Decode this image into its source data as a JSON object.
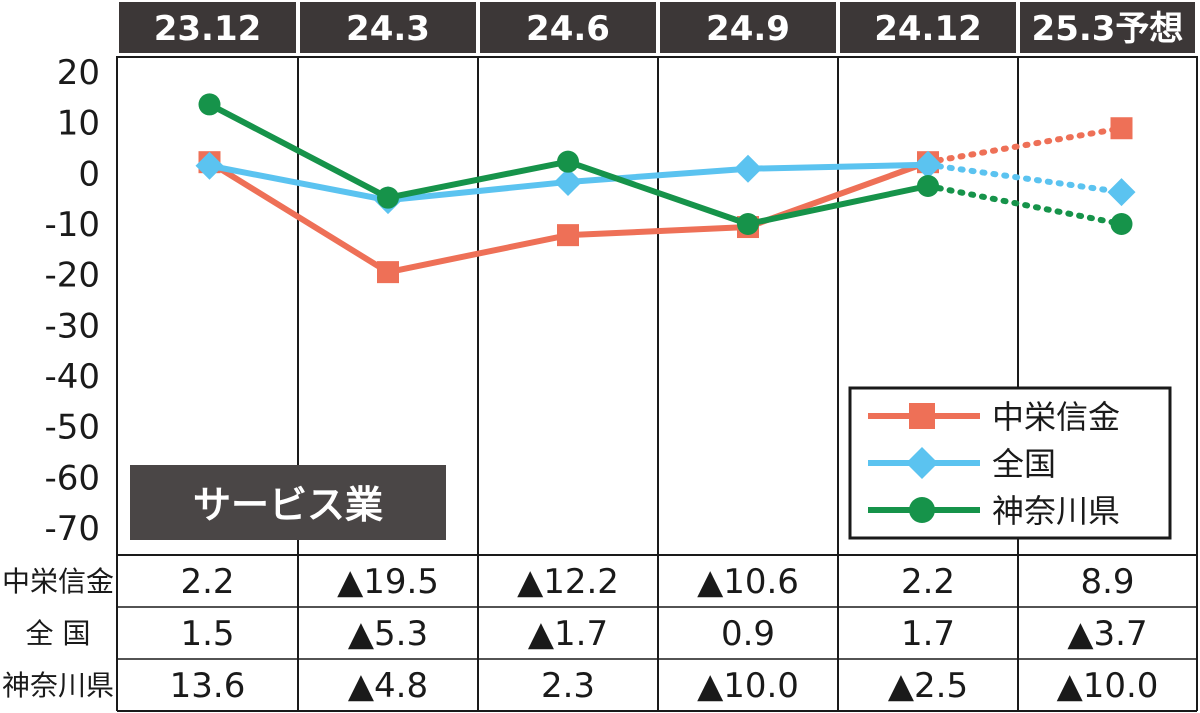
{
  "chart_data": {
    "type": "line",
    "categories": [
      "23.12",
      "24.3",
      "24.6",
      "24.9",
      "24.12",
      "25.3予想"
    ],
    "ylim": [
      -70,
      20
    ],
    "yticks": [
      "20",
      "10",
      "0",
      "-10",
      "-20",
      "-30",
      "-40",
      "-50",
      "-60",
      "-70"
    ],
    "panel_label": "サービス業",
    "legend_position": "bottom-right",
    "forecast_from_index": 4,
    "series": [
      {
        "name": "中栄信金",
        "color": "#ee7057",
        "marker": "square",
        "values": [
          2.2,
          -19.5,
          -12.2,
          -10.6,
          2.2,
          8.9
        ],
        "table_label": "中栄信金",
        "display": [
          "2.2",
          "▲19.5",
          "▲12.2",
          "▲10.6",
          "2.2",
          "8.9"
        ]
      },
      {
        "name": "全国",
        "color": "#5bc3f0",
        "marker": "diamond",
        "values": [
          1.5,
          -5.3,
          -1.7,
          0.9,
          1.7,
          -3.7
        ],
        "table_label": "全 国",
        "display": [
          "1.5",
          "▲5.3",
          "▲1.7",
          "0.9",
          "1.7",
          "▲3.7"
        ]
      },
      {
        "name": "神奈川県",
        "color": "#16934a",
        "marker": "circle",
        "values": [
          13.6,
          -4.8,
          2.3,
          -10.0,
          -2.5,
          -10.0
        ],
        "table_label": "神奈川県",
        "display": [
          "13.6",
          "▲4.8",
          "2.3",
          "▲10.0",
          "▲2.5",
          "▲10.0"
        ]
      }
    ]
  }
}
